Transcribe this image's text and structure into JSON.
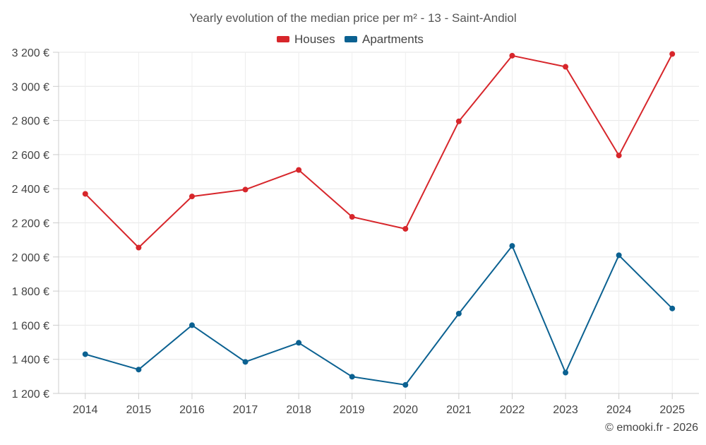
{
  "chart_data": {
    "type": "line",
    "title": "Yearly evolution of the median price per m² - 13 - Saint-Andiol",
    "xlabel": "",
    "ylabel": "",
    "categories": [
      "2014",
      "2015",
      "2016",
      "2017",
      "2018",
      "2019",
      "2020",
      "2021",
      "2022",
      "2023",
      "2024",
      "2025"
    ],
    "series": [
      {
        "name": "Houses",
        "color": "#d7262b",
        "values": [
          2370,
          2055,
          2355,
          2395,
          2510,
          2235,
          2165,
          2795,
          3180,
          3115,
          2595,
          3190
        ]
      },
      {
        "name": "Apartments",
        "color": "#0b6191",
        "values": [
          1430,
          1340,
          1600,
          1385,
          1497,
          1298,
          1250,
          1668,
          2065,
          1322,
          2010,
          1698
        ]
      }
    ],
    "ylim": [
      1200,
      3200
    ],
    "yticks": [
      1200,
      1400,
      1600,
      1800,
      2000,
      2200,
      2400,
      2600,
      2800,
      3000,
      3200
    ],
    "ytick_labels": [
      "1 200 €",
      "1 400 €",
      "1 600 €",
      "1 800 €",
      "2 000 €",
      "2 200 €",
      "2 400 €",
      "2 600 €",
      "2 800 €",
      "3 000 €",
      "3 200 €"
    ],
    "grid": true,
    "legend_position": "top-center",
    "credit": "© emooki.fr - 2026"
  }
}
